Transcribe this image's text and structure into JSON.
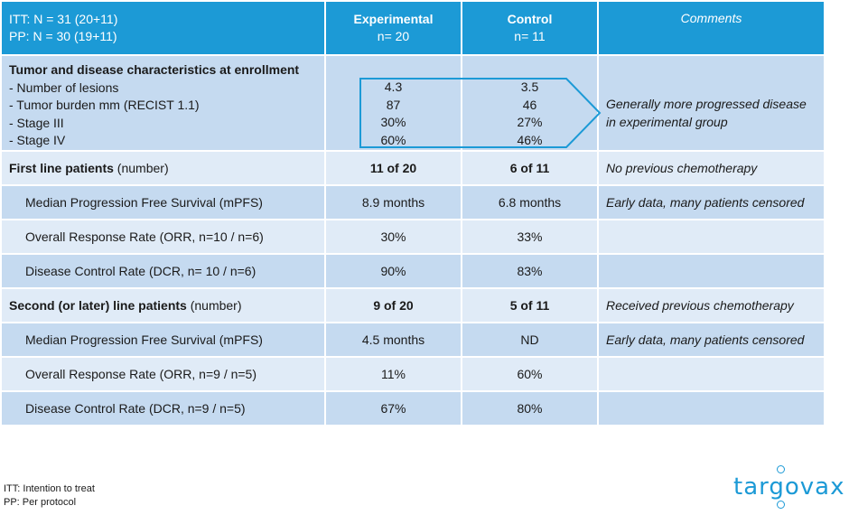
{
  "header": {
    "itt": "ITT: N = 31 (20+11)",
    "pp": "PP: N = 30 (19+11)",
    "experimental_title": "Experimental",
    "experimental_n": "n= 20",
    "control_title": "Control",
    "control_n": "n= 11",
    "comments_title": "Comments"
  },
  "enrollment": {
    "title": "Tumor and disease characteristics at enrollment",
    "items": [
      {
        "label": "-   Number of lesions",
        "experimental": "4.3",
        "control": "3.5"
      },
      {
        "label": "-   Tumor burden mm (RECIST 1.1)",
        "experimental": "87",
        "control": "46"
      },
      {
        "label": "-   Stage III",
        "experimental": "30%",
        "control": "27%"
      },
      {
        "label": "-   Stage IV",
        "experimental": "60%",
        "control": "46%"
      }
    ],
    "comment_line1": "Generally more progressed disease",
    "comment_line2": "in experimental group"
  },
  "rows": [
    {
      "label_bold": "First line patients",
      "label_rest": " (number)",
      "experimental": "11 of 20",
      "control": "6 of 11",
      "comment": "No previous chemotherapy"
    },
    {
      "label": "Median Progression Free Survival (mPFS)",
      "experimental": "8.9 months",
      "control": "6.8 months",
      "comment": "Early data, many patients censored"
    },
    {
      "label": "Overall Response Rate (ORR, n=10 / n=6)",
      "experimental": "30%",
      "control": "33%",
      "comment": ""
    },
    {
      "label": "Disease Control Rate (DCR, n= 10 / n=6)",
      "experimental": "90%",
      "control": "83%",
      "comment": ""
    },
    {
      "label_bold": "Second (or later) line patients",
      "label_rest": " (number)",
      "experimental": "9 of 20",
      "control": "5 of 11",
      "comment": "Received previous chemotherapy"
    },
    {
      "label": "Median Progression Free Survival (mPFS)",
      "experimental": "4.5 months",
      "control": "ND",
      "comment": "Early data, many patients censored"
    },
    {
      "label": "Overall Response Rate (ORR, n=9 / n=5)",
      "experimental": "11%",
      "control": "60%",
      "comment": ""
    },
    {
      "label": "Disease Control Rate (DCR, n=9 / n=5)",
      "experimental": "67%",
      "control": "80%",
      "comment": ""
    }
  ],
  "footnotes": {
    "itt": "ITT: Intention to treat",
    "pp": "PP: Per protocol"
  },
  "logo": {
    "text": "targovax",
    "icon": "targovax-logo"
  },
  "colors": {
    "header_blue": "#1c9ad6",
    "row_dark": "#c5daf0",
    "row_light": "#e0ebf7"
  }
}
